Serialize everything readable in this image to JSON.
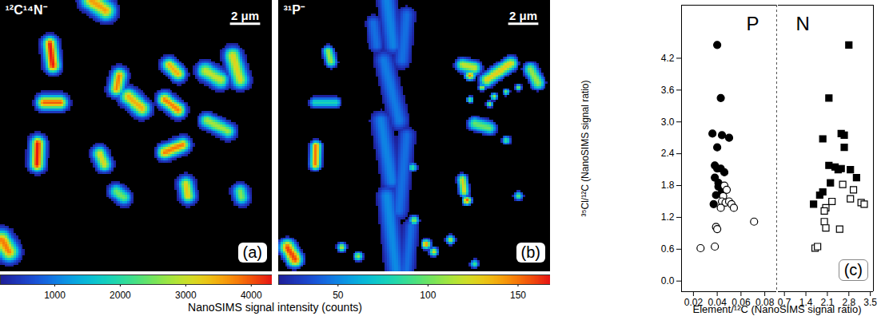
{
  "chart_data": [
    {
      "type": "image",
      "title": "¹²C¹⁴N⁻",
      "panel": "(a)",
      "tick_labels": false,
      "xlim": [
        0,
        18
      ],
      "ylim": [
        0,
        18
      ],
      "scalebar": {
        "length": 2,
        "label": "2 μm"
      },
      "colorbar": {
        "lim": [
          170,
          4320
        ],
        "ticks": [
          1000,
          2000,
          3000,
          4000
        ],
        "label": "NanoSIMS signal intensity (counts)"
      },
      "spots": [
        {
          "x1": 6.0,
          "y1": 0.0,
          "x2": 7.0,
          "y2": 0.7,
          "value": 3600,
          "width": 0.4
        },
        {
          "x1": 3.3,
          "y1": 2.9,
          "x2": 3.5,
          "y2": 4.35,
          "value": 4300,
          "width": 0.3
        },
        {
          "x1": 7.9,
          "y1": 5.0,
          "x2": 7.7,
          "y2": 5.9,
          "value": 3800,
          "width": 0.3
        },
        {
          "x1": 2.9,
          "y1": 6.8,
          "x2": 4.0,
          "y2": 6.8,
          "value": 4000,
          "width": 0.3
        },
        {
          "x1": 11.2,
          "y1": 4.3,
          "x2": 11.8,
          "y2": 4.9,
          "value": 3500,
          "width": 0.3
        },
        {
          "x1": 13.6,
          "y1": 4.7,
          "x2": 14.6,
          "y2": 5.3,
          "value": 3000,
          "width": 0.35
        },
        {
          "x1": 15.4,
          "y1": 3.7,
          "x2": 15.9,
          "y2": 5.3,
          "value": 3200,
          "width": 0.35
        },
        {
          "x1": 8.5,
          "y1": 6.4,
          "x2": 9.4,
          "y2": 7.2,
          "value": 3500,
          "width": 0.35
        },
        {
          "x1": 10.9,
          "y1": 6.6,
          "x2": 11.8,
          "y2": 7.3,
          "value": 3800,
          "width": 0.3
        },
        {
          "x1": 13.7,
          "y1": 8.0,
          "x2": 15.1,
          "y2": 8.7,
          "value": 2800,
          "width": 0.3
        },
        {
          "x1": 2.5,
          "y1": 9.5,
          "x2": 2.45,
          "y2": 10.9,
          "value": 4300,
          "width": 0.3
        },
        {
          "x1": 6.6,
          "y1": 10.2,
          "x2": 6.9,
          "y2": 10.9,
          "value": 3200,
          "width": 0.3
        },
        {
          "x1": 10.9,
          "y1": 10.1,
          "x2": 12.1,
          "y2": 9.6,
          "value": 3800,
          "width": 0.3
        },
        {
          "x1": 12.3,
          "y1": 12.2,
          "x2": 12.45,
          "y2": 13.0,
          "value": 3300,
          "width": 0.3
        },
        {
          "x1": 7.7,
          "y1": 12.7,
          "x2": 8.2,
          "y2": 13.1,
          "value": 2500,
          "width": 0.3
        },
        {
          "x1": 15.9,
          "y1": 12.7,
          "x2": 16.0,
          "y2": 13.1,
          "value": 2600,
          "width": 0.3
        },
        {
          "x1": 0.1,
          "y1": 15.9,
          "x2": 0.6,
          "y2": 16.7,
          "value": 3800,
          "width": 0.4
        }
      ]
    },
    {
      "type": "image",
      "title": "³¹P⁻",
      "panel": "(b)",
      "tick_labels": false,
      "xlim": [
        0,
        18
      ],
      "ylim": [
        0,
        18
      ],
      "scalebar": {
        "length": 2,
        "label": "2 μm"
      },
      "colorbar": {
        "lim": [
          17,
          168
        ],
        "ticks": [
          50,
          100,
          150
        ]
      },
      "spots": [
        {
          "x1": 3.3,
          "y1": 3.4,
          "x2": 3.5,
          "y2": 4.1,
          "value": 110,
          "width": 0.25
        },
        {
          "x1": 2.4,
          "y1": 6.8,
          "x2": 3.8,
          "y2": 6.8,
          "value": 80,
          "width": 0.25
        },
        {
          "x1": 2.5,
          "y1": 9.7,
          "x2": 2.45,
          "y2": 10.9,
          "value": 150,
          "width": 0.25
        },
        {
          "x1": 0.6,
          "y1": 16.4,
          "x2": 1.1,
          "y2": 17.2,
          "value": 160,
          "width": 0.35
        },
        {
          "x1": 7.2,
          "y1": 0.0,
          "x2": 7.6,
          "y2": 3.0,
          "value": 50,
          "width": 0.5
        },
        {
          "x1": 8.5,
          "y1": 1.0,
          "x2": 8.2,
          "y2": 4.0,
          "value": 45,
          "width": 0.45
        },
        {
          "x1": 7.0,
          "y1": 4.0,
          "x2": 8.0,
          "y2": 8.0,
          "value": 48,
          "width": 0.5
        },
        {
          "x1": 6.8,
          "y1": 8.0,
          "x2": 7.5,
          "y2": 12.0,
          "value": 50,
          "width": 0.5
        },
        {
          "x1": 8.5,
          "y1": 9.0,
          "x2": 8.0,
          "y2": 14.0,
          "value": 45,
          "width": 0.45
        },
        {
          "x1": 7.2,
          "y1": 13.0,
          "x2": 7.8,
          "y2": 18.0,
          "value": 52,
          "width": 0.5
        },
        {
          "x1": 8.8,
          "y1": 15.0,
          "x2": 8.5,
          "y2": 18.0,
          "value": 45,
          "width": 0.4
        },
        {
          "x1": 6.3,
          "y1": 1.5,
          "x2": 6.5,
          "y2": 3.0,
          "value": 45,
          "width": 0.4
        },
        {
          "x1": 12.2,
          "y1": 4.3,
          "x2": 13.0,
          "y2": 4.5,
          "value": 120,
          "width": 0.3
        },
        {
          "x1": 12.7,
          "y1": 5.0,
          "x2": 12.7,
          "y2": 5.0,
          "value": 150,
          "width": 0.22
        },
        {
          "x1": 13.8,
          "y1": 5.3,
          "x2": 15.4,
          "y2": 4.2,
          "value": 130,
          "width": 0.3
        },
        {
          "x1": 13.5,
          "y1": 5.8,
          "x2": 13.5,
          "y2": 5.8,
          "value": 120,
          "width": 0.15
        },
        {
          "x1": 14.3,
          "y1": 6.4,
          "x2": 14.3,
          "y2": 6.4,
          "value": 110,
          "width": 0.15
        },
        {
          "x1": 15.1,
          "y1": 6.1,
          "x2": 15.1,
          "y2": 6.1,
          "value": 100,
          "width": 0.15
        },
        {
          "x1": 15.9,
          "y1": 5.8,
          "x2": 15.9,
          "y2": 5.8,
          "value": 110,
          "width": 0.15
        },
        {
          "x1": 12.7,
          "y1": 6.6,
          "x2": 12.7,
          "y2": 6.6,
          "value": 100,
          "width": 0.15
        },
        {
          "x1": 14.0,
          "y1": 6.9,
          "x2": 14.0,
          "y2": 6.9,
          "value": 120,
          "width": 0.15
        },
        {
          "x1": 16.7,
          "y1": 4.6,
          "x2": 17.2,
          "y2": 5.5,
          "value": 110,
          "width": 0.3
        },
        {
          "x1": 13.0,
          "y1": 8.2,
          "x2": 14.0,
          "y2": 8.5,
          "value": 100,
          "width": 0.3
        },
        {
          "x1": 15.1,
          "y1": 9.3,
          "x2": 15.1,
          "y2": 9.3,
          "value": 90,
          "width": 0.2
        },
        {
          "x1": 12.2,
          "y1": 11.9,
          "x2": 12.3,
          "y2": 12.7,
          "value": 130,
          "width": 0.22
        },
        {
          "x1": 12.5,
          "y1": 13.3,
          "x2": 12.5,
          "y2": 13.3,
          "value": 155,
          "width": 0.2
        },
        {
          "x1": 15.9,
          "y1": 13.0,
          "x2": 15.9,
          "y2": 13.0,
          "value": 100,
          "width": 0.2
        },
        {
          "x1": 8.9,
          "y1": 11.1,
          "x2": 8.9,
          "y2": 11.1,
          "value": 90,
          "width": 0.2
        },
        {
          "x1": 9.0,
          "y1": 14.6,
          "x2": 9.0,
          "y2": 14.6,
          "value": 110,
          "width": 0.2
        },
        {
          "x1": 9.8,
          "y1": 16.2,
          "x2": 9.8,
          "y2": 16.2,
          "value": 150,
          "width": 0.2
        },
        {
          "x1": 10.3,
          "y1": 16.7,
          "x2": 10.3,
          "y2": 16.7,
          "value": 130,
          "width": 0.2
        },
        {
          "x1": 4.2,
          "y1": 16.4,
          "x2": 4.2,
          "y2": 16.4,
          "value": 120,
          "width": 0.2
        },
        {
          "x1": 5.3,
          "y1": 17.0,
          "x2": 5.3,
          "y2": 17.0,
          "value": 110,
          "width": 0.2
        },
        {
          "x1": 11.4,
          "y1": 15.9,
          "x2": 11.4,
          "y2": 15.9,
          "value": 120,
          "width": 0.2
        },
        {
          "x1": 13.0,
          "y1": 17.5,
          "x2": 13.0,
          "y2": 17.5,
          "value": 90,
          "width": 0.2
        }
      ]
    },
    {
      "type": "scatter",
      "annotation": "P",
      "ylabel": "³⁵Cl/¹²C (NanoSIMS signal ratio)",
      "xlabel": "Element/¹²C (NanoSIMS signal ratio)",
      "xlim": [
        0.01,
        0.09
      ],
      "xticks": [
        0.02,
        0.04,
        0.06,
        0.08
      ],
      "ylim": [
        -0.2,
        5.2
      ],
      "yticks": [
        {
          "value": 0,
          "label": "0.0"
        },
        0.6,
        1.2,
        1.8,
        2.4,
        {
          "value": 3,
          "label": "3.0"
        },
        3.6,
        4.2
      ],
      "series": [
        {
          "marker": "circle",
          "color": "#000000",
          "x": [
            0.04,
            0.043,
            0.036,
            0.044,
            0.05,
            0.04,
            0.038,
            0.04,
            0.043,
            0.046,
            0.038,
            0.041,
            0.044,
            0.039,
            0.041,
            0.037
          ],
          "values": [
            4.45,
            3.45,
            2.78,
            2.75,
            2.7,
            2.52,
            2.18,
            2.12,
            2.12,
            2.05,
            1.95,
            1.85,
            1.68,
            1.62,
            1.78,
            1.45
          ]
        },
        {
          "marker": "circle-open",
          "color": "#000000",
          "x": [
            0.046,
            0.048,
            0.045,
            0.044,
            0.047,
            0.05,
            0.043,
            0.052,
            0.054,
            0.039,
            0.04,
            0.026,
            0.038,
            0.071
          ],
          "values": [
            1.8,
            1.72,
            1.6,
            1.5,
            1.48,
            1.5,
            1.38,
            1.45,
            1.38,
            1.02,
            0.98,
            0.62,
            0.65,
            1.12
          ]
        }
      ]
    },
    {
      "type": "scatter",
      "annotation": "N",
      "panel": "(c)",
      "xlim": [
        0.5,
        3.6
      ],
      "xticks": [
        0.7,
        1.4,
        2.1,
        2.8,
        3.5
      ],
      "ylim": [
        -0.2,
        5.2
      ],
      "series": [
        {
          "marker": "square",
          "color": "#000000",
          "x": [
            2.8,
            2.15,
            2.55,
            2.65,
            1.95,
            2.65,
            2.15,
            2.35,
            2.45,
            2.55,
            2.85,
            3.05,
            1.95,
            1.85,
            2.2,
            1.65
          ],
          "values": [
            4.45,
            3.45,
            2.78,
            2.75,
            2.68,
            2.52,
            2.18,
            2.15,
            2.1,
            2.12,
            2.1,
            1.95,
            1.68,
            1.62,
            1.85,
            1.45
          ]
        },
        {
          "marker": "square-open",
          "color": "#000000",
          "x": [
            2.6,
            2.95,
            2.25,
            2.05,
            2.0,
            2.85,
            3.2,
            3.3,
            2.0,
            2.05,
            2.5,
            1.7,
            1.78
          ],
          "values": [
            1.82,
            1.72,
            1.5,
            1.38,
            1.32,
            1.55,
            1.48,
            1.45,
            1.12,
            1.0,
            0.98,
            0.62,
            0.65
          ]
        }
      ]
    }
  ]
}
